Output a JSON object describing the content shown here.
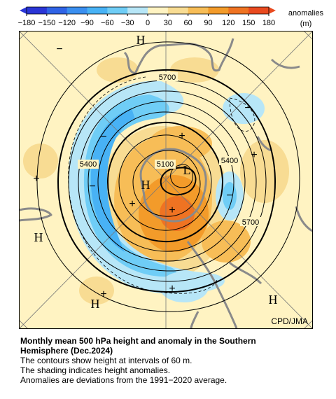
{
  "legend": {
    "ticks": [
      "−180",
      "−150",
      "−120",
      "−90",
      "−60",
      "−30",
      "0",
      "30",
      "60",
      "90",
      "120",
      "150",
      "180"
    ],
    "title_line1": "anomalies",
    "title_line2": "(m)",
    "colors": [
      "#2a35d6",
      "#2f63e6",
      "#3a8ff0",
      "#48b2f5",
      "#6fcdf6",
      "#b7e6f7",
      "#fff3c2",
      "#f8dc93",
      "#f7bd57",
      "#f39b2a",
      "#ef7322",
      "#e94a1f"
    ]
  },
  "map": {
    "contour_labels": [
      "5700",
      "5400",
      "5100",
      "5400",
      "5700"
    ],
    "highs_lows": [
      "H",
      "H",
      "H",
      "H",
      "L",
      "H"
    ],
    "anomaly_signs": [
      "−",
      "−",
      "−",
      "−",
      "−",
      "+",
      "+",
      "+",
      "+",
      "+",
      "+",
      "+"
    ]
  },
  "credit": "CPD/JMA",
  "caption": {
    "title_line1": "Monthly mean 500 hPa height and anomaly in the Southern",
    "title_line2": "Hemisphere (Dec.2024)",
    "line1": "The contours show height at intervals of 60 m.",
    "line2": "The shading indicates height anomalies.",
    "line3": "Anomalies are deviations from the 1991−2020 average."
  }
}
